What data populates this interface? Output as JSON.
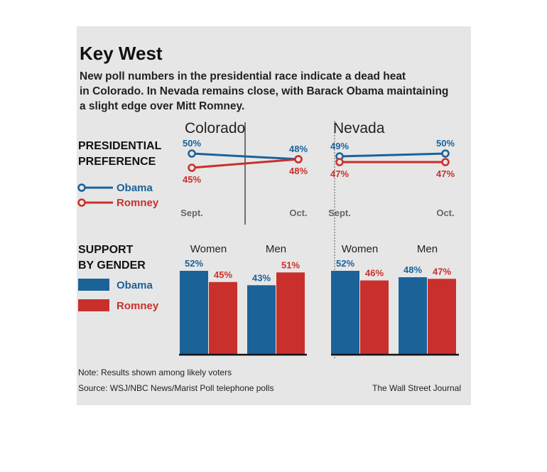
{
  "title": "Key West",
  "subtitle": [
    "New poll numbers in the presidential race indicate a dead heat",
    "in Colorado. In Nevada remains close, with Barack Obama maintaining",
    "a slight edge over Mitt Romney."
  ],
  "colors": {
    "obama": "#1b6299",
    "romney": "#c9302c",
    "panel": "#e6e6e6"
  },
  "sections": {
    "preference": [
      "PRESIDENTIAL",
      "PREFERENCE"
    ],
    "gender": [
      "SUPPORT",
      "BY GENDER"
    ]
  },
  "legend": {
    "obama": "Obama",
    "romney": "Romney"
  },
  "footer": {
    "note": "Note: Results shown among likely voters",
    "source": "Source: WSJ/NBC News/Marist Poll telephone polls",
    "credit": "The Wall Street Journal"
  },
  "chart_data": [
    {
      "type": "line",
      "title": "Colorado",
      "categories": [
        "Sept.",
        "Oct."
      ],
      "series": [
        {
          "name": "Obama",
          "values": [
            50,
            48
          ],
          "labels": [
            "50%",
            "48%"
          ]
        },
        {
          "name": "Romney",
          "values": [
            45,
            48
          ],
          "labels": [
            "45%",
            "48%"
          ]
        }
      ]
    },
    {
      "type": "line",
      "title": "Nevada",
      "categories": [
        "Sept.",
        "Oct."
      ],
      "series": [
        {
          "name": "Obama",
          "values": [
            49,
            50
          ],
          "labels": [
            "49%",
            "50%"
          ]
        },
        {
          "name": "Romney",
          "values": [
            47,
            47
          ],
          "labels": [
            "47%",
            "47%"
          ]
        }
      ]
    },
    {
      "type": "bar",
      "title": "Colorado",
      "categories": [
        "Women",
        "Men"
      ],
      "series": [
        {
          "name": "Obama",
          "values": [
            52,
            43
          ],
          "labels": [
            "52%",
            "43%"
          ]
        },
        {
          "name": "Romney",
          "values": [
            45,
            51
          ],
          "labels": [
            "45%",
            "51%"
          ]
        }
      ]
    },
    {
      "type": "bar",
      "title": "Nevada",
      "categories": [
        "Women",
        "Men"
      ],
      "series": [
        {
          "name": "Obama",
          "values": [
            52,
            48
          ],
          "labels": [
            "52%",
            "48%"
          ]
        },
        {
          "name": "Romney",
          "values": [
            46,
            47
          ],
          "labels": [
            "46%",
            "47%"
          ]
        }
      ]
    }
  ]
}
